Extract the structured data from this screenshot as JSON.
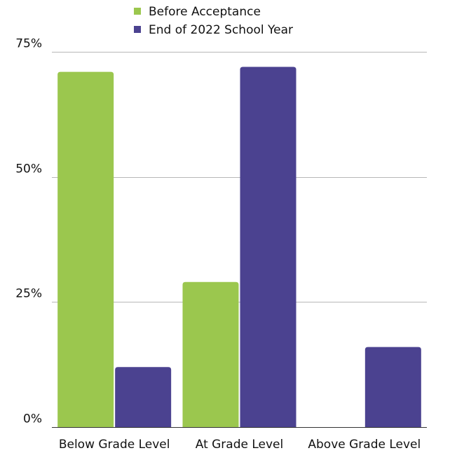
{
  "chart_data": {
    "type": "bar",
    "categories": [
      "Below Grade Level",
      "At Grade Level",
      "Above Grade Level"
    ],
    "series": [
      {
        "name": "Before Acceptance",
        "values": [
          71,
          29,
          0
        ],
        "color": "#9bc74e"
      },
      {
        "name": "End of 2022 School Year",
        "values": [
          12,
          72,
          16
        ],
        "color": "#4b4290"
      }
    ],
    "y_ticks": [
      {
        "value": 0,
        "label": "0%"
      },
      {
        "value": 25,
        "label": "25%"
      },
      {
        "value": 50,
        "label": "50%"
      },
      {
        "value": 75,
        "label": "75%"
      }
    ],
    "ylim": [
      0,
      75
    ],
    "grid": true,
    "legend_position": "top-center",
    "title": "",
    "xlabel": "",
    "ylabel": ""
  }
}
